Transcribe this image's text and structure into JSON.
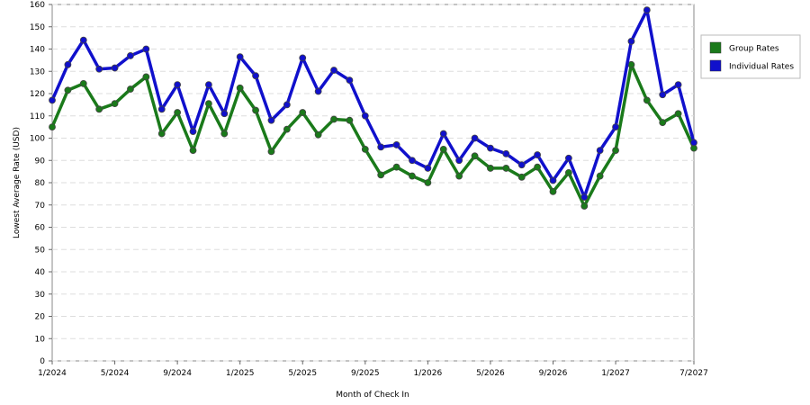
{
  "chart_data": {
    "type": "line",
    "x_label": "Month of Check In",
    "y_label": "Lowest Average Rate (USD)",
    "categories": [
      "1/2024",
      null,
      null,
      null,
      "5/2024",
      null,
      null,
      null,
      "9/2024",
      null,
      null,
      null,
      "1/2025",
      null,
      null,
      null,
      "5/2025",
      null,
      null,
      null,
      "9/2025",
      null,
      null,
      null,
      "1/2026",
      null,
      null,
      null,
      "5/2026",
      null,
      null,
      null,
      "9/2026",
      null,
      null,
      null,
      "1/2027",
      null,
      null,
      null,
      null,
      "7/2027"
    ],
    "series": [
      {
        "name": "Group Rates",
        "color": "#1a7a1a",
        "values": [
          105,
          121.5,
          124.5,
          113,
          115.5,
          122,
          127.5,
          102,
          111.5,
          94.5,
          115.5,
          102,
          122.5,
          112.5,
          94,
          104,
          111.5,
          101.5,
          108.5,
          108,
          95,
          83.5,
          87,
          83,
          80,
          95,
          83,
          92,
          86.5,
          86.5,
          82.5,
          87,
          76,
          84.5,
          69.5,
          83,
          94.5,
          133,
          117,
          107,
          111,
          95.5
        ]
      },
      {
        "name": "Individual Rates",
        "color": "#1010cc",
        "values": [
          117,
          133,
          144,
          131,
          131.5,
          137,
          140,
          113,
          124,
          103,
          124,
          111,
          136.5,
          128,
          108,
          115,
          136,
          121,
          130.5,
          126,
          110,
          96,
          97,
          90,
          86.5,
          102,
          90,
          100,
          95.5,
          93,
          88,
          92.5,
          81,
          91,
          73.5,
          94.5,
          105,
          143.5,
          157.5,
          119.5,
          124,
          98
        ]
      }
    ],
    "ylim": [
      0,
      160
    ],
    "yticks": [
      0,
      10,
      20,
      30,
      40,
      50,
      60,
      70,
      80,
      90,
      100,
      110,
      120,
      130,
      140,
      150,
      160
    ],
    "grid": true
  }
}
